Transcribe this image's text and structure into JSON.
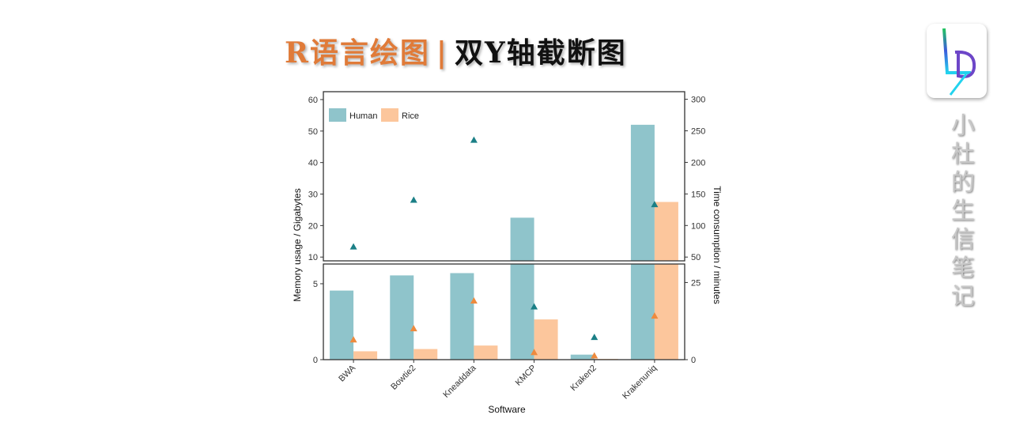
{
  "header": {
    "title_part1": "R语言绘图",
    "separator": "|",
    "title_part2": "双Y轴截断图"
  },
  "brand": {
    "logo_text": "LD",
    "vertical_text": [
      "小",
      "杜",
      "的",
      "生",
      "信",
      "笔",
      "记"
    ]
  },
  "colors": {
    "human": "#8fc4cb",
    "rice": "#fcc69c",
    "human_marker": "#1b7f86",
    "rice_marker": "#ee8a3e"
  },
  "chart_data": {
    "type": "bar",
    "subtype": "bar with triangle points, broken dual y-axis",
    "categories": [
      "BWA",
      "Bowtie2",
      "Kneaddata",
      "KMCP",
      "Kraken2",
      "Krakenuniq"
    ],
    "xlabel": "Software",
    "ylabel": "Memory usage / Gigabytes",
    "y2label": "Time consumption / minutes",
    "legend": {
      "placement": "top-left",
      "entries": [
        "Human",
        "Rice"
      ]
    },
    "grid": false,
    "series": [
      {
        "name": "Human",
        "axis": "left",
        "mark": "bar",
        "values": [
          4.55,
          5.55,
          5.7,
          22.5,
          0.33,
          52
        ]
      },
      {
        "name": "Rice",
        "axis": "left",
        "mark": "bar",
        "values": [
          0.55,
          0.7,
          0.93,
          2.65,
          0.05,
          27.5
        ]
      },
      {
        "name": "Human",
        "axis": "right",
        "mark": "triangle",
        "values": [
          67,
          141,
          236,
          17.3,
          7.4,
          134
        ]
      },
      {
        "name": "Rice",
        "axis": "right",
        "mark": "triangle",
        "values": [
          6.6,
          10.2,
          19.2,
          2.5,
          1.4,
          14.3
        ]
      }
    ],
    "left_axis": {
      "lower_panel": {
        "ylim": [
          0,
          6.3
        ],
        "ticks": [
          0,
          5
        ]
      },
      "upper_panel": {
        "ylim": [
          8.8,
          62.5
        ],
        "ticks": [
          10,
          20,
          30,
          40,
          50,
          60
        ]
      }
    },
    "right_axis": {
      "lower_panel": {
        "ylim": [
          0,
          31
        ],
        "ticks": [
          0,
          25
        ]
      },
      "upper_panel": {
        "ylim": [
          44,
          312
        ],
        "ticks": [
          50,
          100,
          150,
          200,
          250,
          300
        ]
      }
    }
  }
}
